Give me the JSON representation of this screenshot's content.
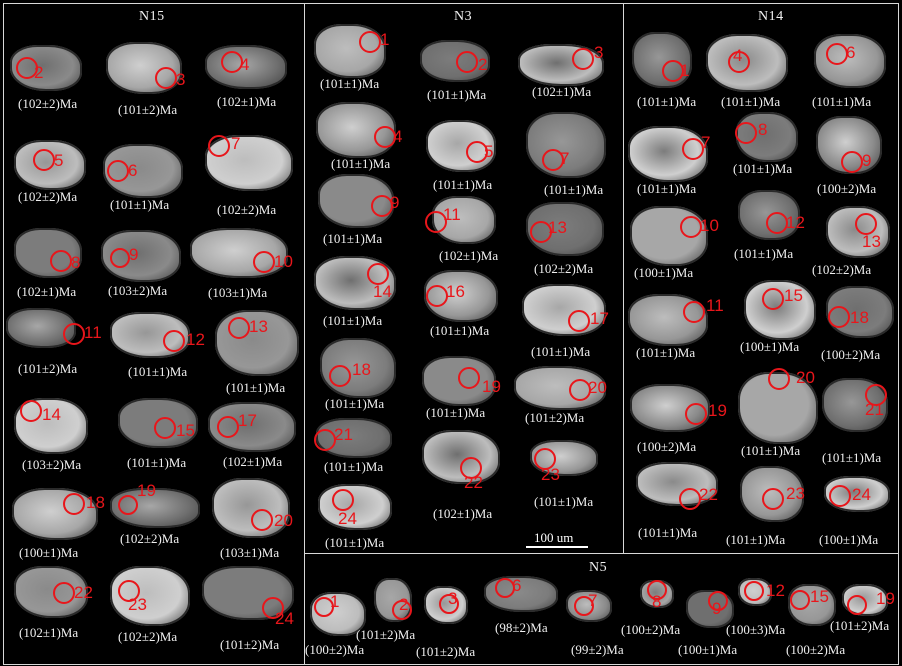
{
  "panels": [
    {
      "title": "N15",
      "samples": [
        {
          "id": "2",
          "age": "(102±2)Ma"
        },
        {
          "id": "3",
          "age": "(101±2)Ma"
        },
        {
          "id": "4",
          "age": "(102±1)Ma"
        },
        {
          "id": "5",
          "age": "(102±2)Ma"
        },
        {
          "id": "6",
          "age": "(101±1)Ma"
        },
        {
          "id": "7",
          "age": "(102±2)Ma"
        },
        {
          "id": "8",
          "age": "(102±1)Ma"
        },
        {
          "id": "9",
          "age": "(103±2)Ma"
        },
        {
          "id": "10",
          "age": "(103±1)Ma"
        },
        {
          "id": "11",
          "age": "(101±2)Ma"
        },
        {
          "id": "12",
          "age": "(101±1)Ma"
        },
        {
          "id": "13",
          "age": "(101±1)Ma"
        },
        {
          "id": "14",
          "age": "(103±2)Ma"
        },
        {
          "id": "15",
          "age": "(101±1)Ma"
        },
        {
          "id": "17",
          "age": "(102±1)Ma"
        },
        {
          "id": "18",
          "age": "(100±1)Ma"
        },
        {
          "id": "19",
          "age": "(102±2)Ma"
        },
        {
          "id": "20",
          "age": "(103±1)Ma"
        },
        {
          "id": "22",
          "age": "(102±1)Ma"
        },
        {
          "id": "23",
          "age": "(102±2)Ma"
        },
        {
          "id": "24",
          "age": "(101±2)Ma"
        }
      ]
    },
    {
      "title": "N3",
      "samples": [
        {
          "id": "1",
          "age": "(101±1)Ma"
        },
        {
          "id": "2",
          "age": "(101±1)Ma"
        },
        {
          "id": "3",
          "age": "(102±1)Ma"
        },
        {
          "id": "4",
          "age": "(101±1)Ma"
        },
        {
          "id": "5",
          "age": "(101±1)Ma"
        },
        {
          "id": "7",
          "age": "(101±1)Ma"
        },
        {
          "id": "9",
          "age": "(101±1)Ma"
        },
        {
          "id": "11",
          "age": "(102±1)Ma"
        },
        {
          "id": "13",
          "age": "(102±2)Ma"
        },
        {
          "id": "14",
          "age": "(101±1)Ma"
        },
        {
          "id": "16",
          "age": "(101±1)Ma"
        },
        {
          "id": "17",
          "age": "(101±1)Ma"
        },
        {
          "id": "18",
          "age": "(101±1)Ma"
        },
        {
          "id": "19",
          "age": "(101±1)Ma"
        },
        {
          "id": "20",
          "age": "(101±2)Ma"
        },
        {
          "id": "21",
          "age": "(101±1)Ma"
        },
        {
          "id": "22",
          "age": "(102±1)Ma"
        },
        {
          "id": "23",
          "age": "(101±1)Ma"
        },
        {
          "id": "24",
          "age": "(101±1)Ma"
        }
      ]
    },
    {
      "title": "N14",
      "samples": [
        {
          "id": "1",
          "age": "(101±1)Ma"
        },
        {
          "id": "4",
          "age": "(101±1)Ma"
        },
        {
          "id": "6",
          "age": "(101±1)Ma"
        },
        {
          "id": "7",
          "age": "(101±1)Ma"
        },
        {
          "id": "8",
          "age": "(101±1)Ma"
        },
        {
          "id": "9",
          "age": "(100±2)Ma"
        },
        {
          "id": "10",
          "age": "(100±1)Ma"
        },
        {
          "id": "12",
          "age": "(101±1)Ma"
        },
        {
          "id": "13",
          "age": "(102±2)Ma"
        },
        {
          "id": "11",
          "age": "(101±1)Ma"
        },
        {
          "id": "15",
          "age": "(100±1)Ma"
        },
        {
          "id": "18",
          "age": "(100±2)Ma"
        },
        {
          "id": "19",
          "age": "(100±2)Ma"
        },
        {
          "id": "20",
          "age": "(101±1)Ma"
        },
        {
          "id": "21",
          "age": "(101±1)Ma"
        },
        {
          "id": "22",
          "age": "(101±1)Ma"
        },
        {
          "id": "23",
          "age": "(101±1)Ma"
        },
        {
          "id": "24",
          "age": "(100±1)Ma"
        }
      ]
    },
    {
      "title": "N5",
      "samples": [
        {
          "id": "1",
          "age": "(100±2)Ma"
        },
        {
          "id": "2",
          "age": "(101±2)Ma"
        },
        {
          "id": "3",
          "age": "(101±2)Ma"
        },
        {
          "id": "6",
          "age": "(98±2)Ma"
        },
        {
          "id": "7",
          "age": "(99±2)Ma"
        },
        {
          "id": "8",
          "age": "(100±2)Ma"
        },
        {
          "id": "9",
          "age": "(100±1)Ma"
        },
        {
          "id": "12",
          "age": "(100±3)Ma"
        },
        {
          "id": "15",
          "age": "(100±2)Ma"
        },
        {
          "id": "19",
          "age": "(101±2)Ma"
        }
      ]
    }
  ],
  "scale_bar_label": "100 um"
}
